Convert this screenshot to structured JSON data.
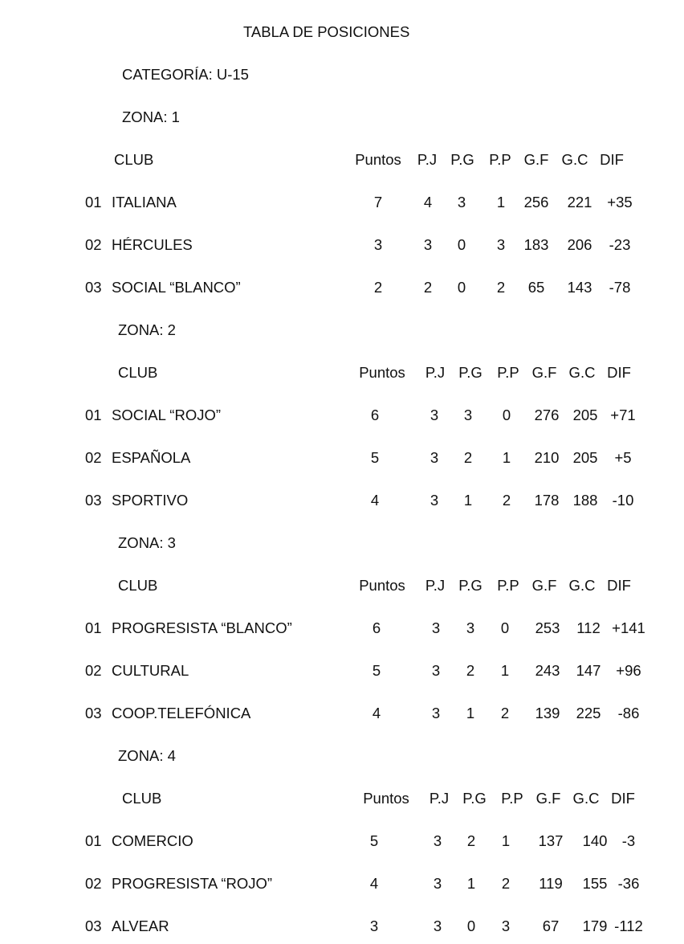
{
  "title": "TABLA DE POSICIONES",
  "category": "CATEGORÍA:  U-15",
  "headers": {
    "club": "CLUB",
    "puntos": "Puntos",
    "pj": "P.J",
    "pg": "P.G",
    "pp": "P.P",
    "gf": "G.F",
    "gc": "G.C",
    "dif": "DIF"
  },
  "zones": [
    {
      "label": "ZONA: 1",
      "rows": [
        {
          "pos": "01",
          "club": "ITALIANA",
          "puntos": "7",
          "pj": "4",
          "pg": "3",
          "pp": "1",
          "gf": "256",
          "gc": "221",
          "dif": "+35"
        },
        {
          "pos": "02",
          "club": "HÉRCULES",
          "puntos": "3",
          "pj": "3",
          "pg": "0",
          "pp": "3",
          "gf": "183",
          "gc": "206",
          "dif": "-23"
        },
        {
          "pos": "03",
          "club": "SOCIAL “BLANCO”",
          "puntos": "2",
          "pj": "2",
          "pg": "0",
          "pp": "2",
          "gf": "65",
          "gc": "143",
          "dif": "-78"
        }
      ]
    },
    {
      "label": "ZONA: 2",
      "rows": [
        {
          "pos": "01",
          "club": "SOCIAL “ROJO”",
          "puntos": "6",
          "pj": "3",
          "pg": "3",
          "pp": "0",
          "gf": "276",
          "gc": "205",
          "dif": "+71"
        },
        {
          "pos": "02",
          "club": "ESPAÑOLA",
          "puntos": "5",
          "pj": "3",
          "pg": "2",
          "pp": "1",
          "gf": "210",
          "gc": "205",
          "dif": "+5"
        },
        {
          "pos": "03",
          "club": "SPORTIVO",
          "puntos": "4",
          "pj": "3",
          "pg": "1",
          "pp": "2",
          "gf": "178",
          "gc": "188",
          "dif": "-10"
        }
      ]
    },
    {
      "label": "ZONA:  3",
      "rows": [
        {
          "pos": "01",
          "club": "PROGRESISTA “BLANCO”",
          "puntos": "6",
          "pj": "3",
          "pg": "3",
          "pp": "0",
          "gf": "253",
          "gc": "112",
          "dif": "+141"
        },
        {
          "pos": "02",
          "club": "CULTURAL",
          "puntos": "5",
          "pj": "3",
          "pg": "2",
          "pp": "1",
          "gf": "243",
          "gc": "147",
          "dif": "+96"
        },
        {
          "pos": "03",
          "club": "COOP.TELEFÓNICA",
          "puntos": "4",
          "pj": "3",
          "pg": "1",
          "pp": "2",
          "gf": "139",
          "gc": "225",
          "dif": "-86"
        }
      ]
    },
    {
      "label": "ZONA:  4",
      "rows": [
        {
          "pos": "01",
          "club": "COMERCIO",
          "puntos": "5",
          "pj": "3",
          "pg": "2",
          "pp": "1",
          "gf": "137",
          "gc": "140",
          "dif": "-3"
        },
        {
          "pos": "02",
          "club": "PROGRESISTA “ROJO”",
          "puntos": "4",
          "pj": "3",
          "pg": "1",
          "pp": "2",
          "gf": "119",
          "gc": "155",
          "dif": "-36"
        },
        {
          "pos": "03",
          "club": "ALVEAR",
          "puntos": "3",
          "pj": "3",
          "pg": "0",
          "pp": "3",
          "gf": "67",
          "gc": "179",
          "dif": "-112"
        }
      ]
    }
  ]
}
